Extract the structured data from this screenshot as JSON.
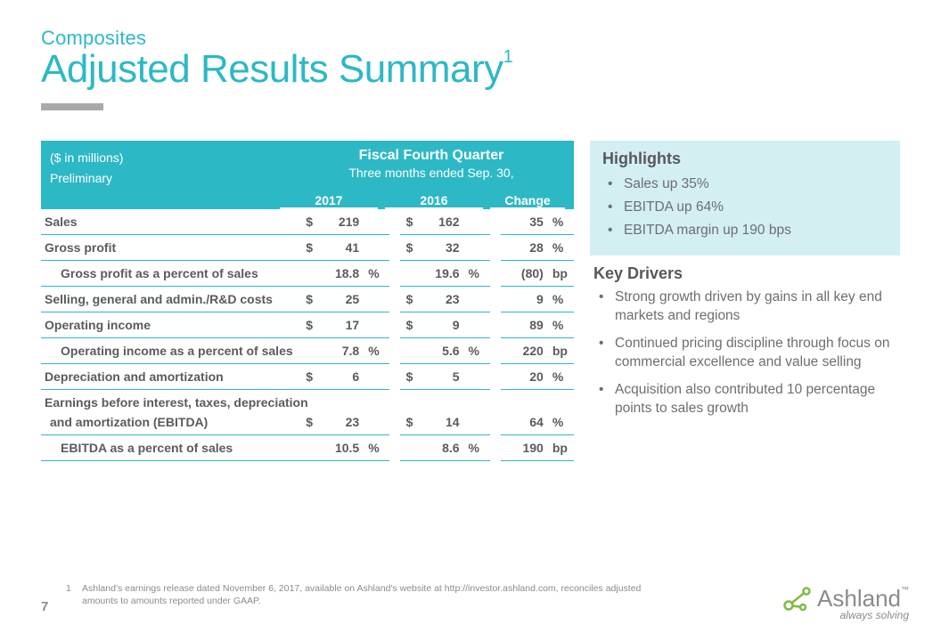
{
  "colors": {
    "accent": "#2db8c5",
    "text": "#6d6e71",
    "highlight_bg": "#d3eff2",
    "rule": "#a8a9ab"
  },
  "header": {
    "subtitle": "Composites",
    "title": "Adjusted Results Summary",
    "superscript": "1"
  },
  "table": {
    "meta_line1": "($ in millions)",
    "meta_line2": "Preliminary",
    "period_title": "Fiscal Fourth Quarter",
    "period_sub": "Three months ended Sep. 30,",
    "col_2017": "2017",
    "col_2016": "2016",
    "col_change": "Change",
    "rows": [
      {
        "label": "Sales",
        "sym": "$",
        "v1": "219",
        "u1": "",
        "v2": "162",
        "u2": "",
        "chg": "35",
        "cu": "%",
        "sub": false
      },
      {
        "label": "Gross profit",
        "sym": "$",
        "v1": "41",
        "u1": "",
        "v2": "32",
        "u2": "",
        "chg": "28",
        "cu": "%",
        "sub": false
      },
      {
        "label": "Gross profit as a percent of sales",
        "sym": "",
        "v1": "18.8",
        "u1": "%",
        "v2": "19.6",
        "u2": "%",
        "chg": "(80)",
        "cu": "bp",
        "sub": true
      },
      {
        "label": "Selling, general and admin./R&D costs",
        "sym": "$",
        "v1": "25",
        "u1": "",
        "v2": "23",
        "u2": "",
        "chg": "9",
        "cu": "%",
        "sub": false
      },
      {
        "label": "Operating income",
        "sym": "$",
        "v1": "17",
        "u1": "",
        "v2": "9",
        "u2": "",
        "chg": "89",
        "cu": "%",
        "sub": false
      },
      {
        "label": "Operating income as a percent of sales",
        "sym": "",
        "v1": "7.8",
        "u1": "%",
        "v2": "5.6",
        "u2": "%",
        "chg": "220",
        "cu": "bp",
        "sub": true
      },
      {
        "label": "Depreciation and amortization",
        "sym": "$",
        "v1": "6",
        "u1": "",
        "v2": "5",
        "u2": "",
        "chg": "20",
        "cu": "%",
        "sub": false
      }
    ],
    "ebitda_l1": "Earnings before interest, taxes, depreciation",
    "ebitda_l2": "and amortization (EBITDA)",
    "ebitda": {
      "sym": "$",
      "v1": "23",
      "v2": "14",
      "chg": "64",
      "cu": "%"
    },
    "ebitda_pct_label": "EBITDA as a percent of sales",
    "ebitda_pct": {
      "v1": "10.5",
      "u1": "%",
      "v2": "8.6",
      "u2": "%",
      "chg": "190",
      "cu": "bp"
    }
  },
  "highlights": {
    "title": "Highlights",
    "items": [
      "Sales up 35%",
      "EBITDA up 64%",
      "EBITDA margin up 190 bps"
    ]
  },
  "key_drivers": {
    "title": "Key Drivers",
    "items": [
      "Strong growth driven by gains in all key end markets and regions",
      "Continued pricing discipline through focus on commercial excellence and value selling",
      "Acquisition also contributed 10 percentage points to sales growth"
    ]
  },
  "footnote": {
    "num": "1",
    "text": "Ashland's earnings release dated November 6, 2017, available on Ashland's website at http://investor.ashland.com, reconciles adjusted amounts to amounts reported under GAAP."
  },
  "page_number": "7",
  "logo": {
    "name": "Ashland",
    "tm": "™",
    "tagline": "always solving"
  }
}
